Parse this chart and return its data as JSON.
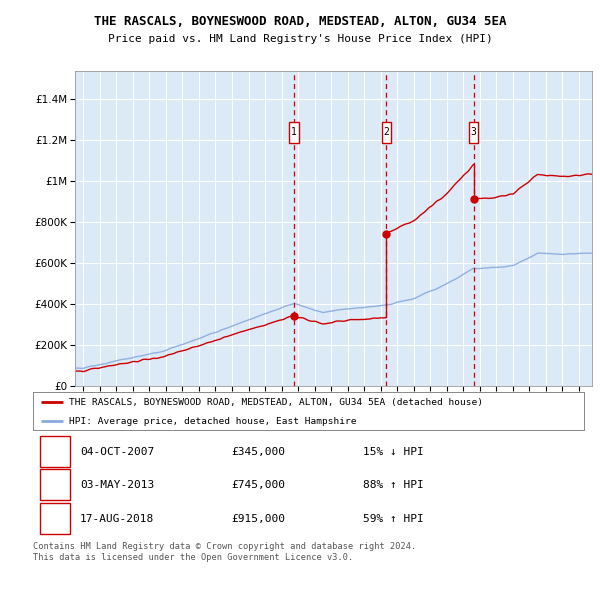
{
  "title": "THE RASCALS, BOYNESWOOD ROAD, MEDSTEAD, ALTON, GU34 5EA",
  "subtitle": "Price paid vs. HM Land Registry's House Price Index (HPI)",
  "ylabel_values": [
    0,
    200000,
    400000,
    600000,
    800000,
    1000000,
    1200000,
    1400000
  ],
  "ylim": [
    0,
    1540000
  ],
  "xlim_start": 1994.5,
  "xlim_end": 2025.8,
  "background_color": "#dce9f7",
  "grid_color": "#ffffff",
  "transactions": [
    {
      "num": 1,
      "date": "04-OCT-2007",
      "year": 2007.75,
      "price": 345000,
      "pct": "15%",
      "dir": "↓"
    },
    {
      "num": 2,
      "date": "03-MAY-2013",
      "year": 2013.33,
      "price": 745000,
      "pct": "88%",
      "dir": "↑"
    },
    {
      "num": 3,
      "date": "17-AUG-2018",
      "year": 2018.62,
      "price": 915000,
      "pct": "59%",
      "dir": "↑"
    }
  ],
  "legend_property_label": "THE RASCALS, BOYNESWOOD ROAD, MEDSTEAD, ALTON, GU34 5EA (detached house)",
  "legend_hpi_label": "HPI: Average price, detached house, East Hampshire",
  "footer_line1": "Contains HM Land Registry data © Crown copyright and database right 2024.",
  "footer_line2": "This data is licensed under the Open Government Licence v3.0.",
  "property_line_color": "#cc0000",
  "hpi_line_color": "#88aadd",
  "vline_color": "#cc0000",
  "marker_box_color": "#cc0000"
}
